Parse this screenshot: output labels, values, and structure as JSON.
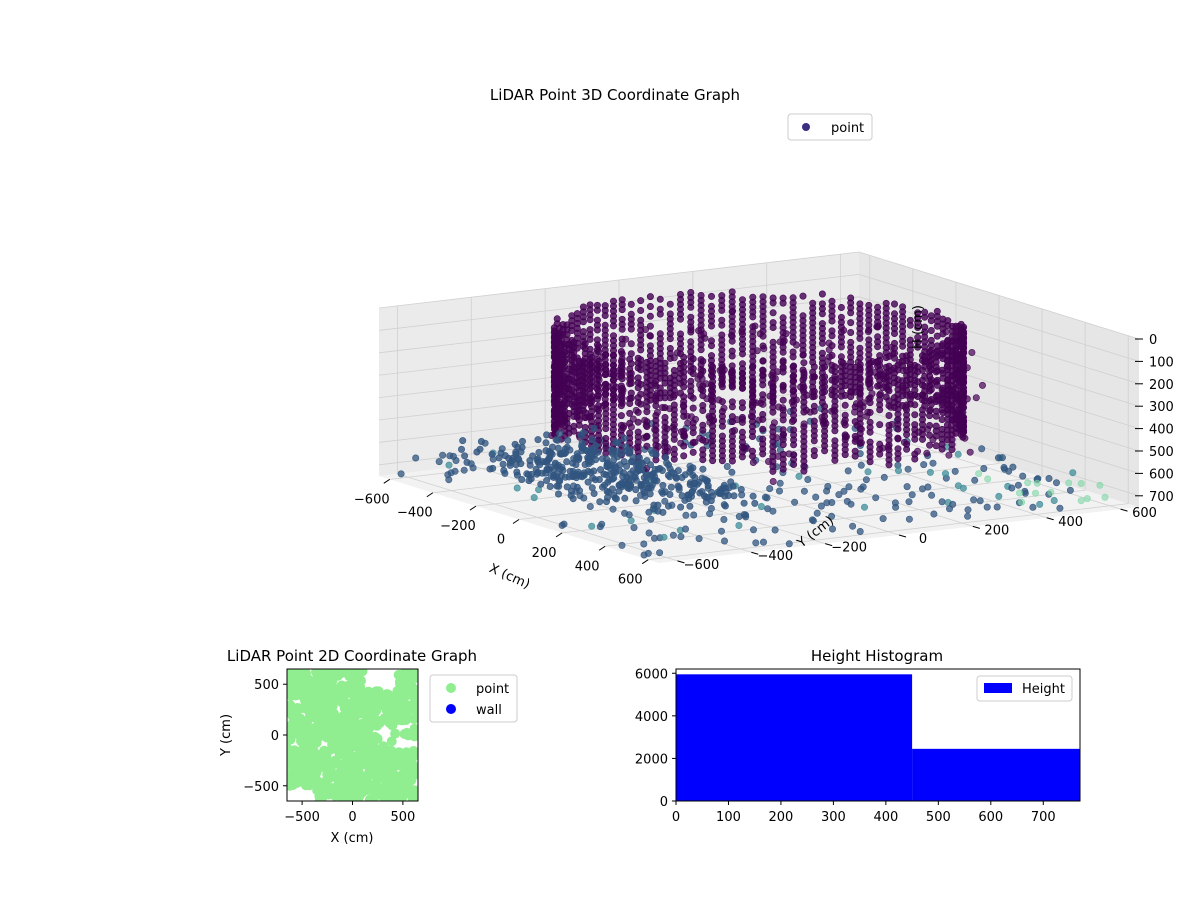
{
  "colors": {
    "dark_point": "#3b2f80",
    "wall_point": "#440154",
    "floor_point": "#31557f",
    "green_point": "#90ee90",
    "wall_legend": "#0000ff",
    "bar": "#0000ff",
    "pane": "#f2f2f2",
    "grid": "#d0d0d0"
  },
  "chart_data": [
    {
      "type": "scatter",
      "title": "LiDAR Point 3D Coordinate Graph",
      "xlabel": "X (cm)",
      "ylabel": "Y (cm)",
      "zlabel": "H (cm)",
      "legend": {
        "placement": "top-right",
        "entries": [
          "point"
        ]
      },
      "x_ticks": [
        -600,
        -400,
        -200,
        0,
        200,
        400,
        600
      ],
      "y_ticks": [
        -600,
        -400,
        -200,
        0,
        200,
        400,
        600
      ],
      "z_ticks": [
        0,
        100,
        200,
        300,
        400,
        500,
        600,
        700
      ],
      "x_tick_labels": [
        "−600",
        "−400",
        "−200",
        "0",
        "200",
        "400",
        "600"
      ],
      "y_tick_labels": [
        "−600",
        "−400",
        "−200",
        "0",
        "200",
        "400",
        "600"
      ],
      "z_tick_labels": [
        "0",
        "100",
        "200",
        "300",
        "400",
        "500",
        "600",
        "700"
      ],
      "xlim": [
        -650,
        650
      ],
      "ylim": [
        -650,
        650
      ],
      "zlim": [
        0,
        750
      ],
      "z_inverted": true,
      "grid": true,
      "series": [
        {
          "name": "point",
          "color": "#3b2f80"
        }
      ]
    },
    {
      "type": "scatter",
      "title": "LiDAR Point 2D Coordinate Graph",
      "xlabel": "X (cm)",
      "ylabel": "Y (cm)",
      "xlim": [
        -650,
        650
      ],
      "ylim": [
        -650,
        650
      ],
      "x_ticks": [
        -500,
        0,
        500
      ],
      "y_ticks": [
        -500,
        0,
        500
      ],
      "x_tick_labels": [
        "−500",
        "0",
        "500"
      ],
      "y_tick_labels": [
        "−500",
        "0",
        "500"
      ],
      "legend": {
        "placement": "outside-right",
        "entries": [
          "point",
          "wall"
        ]
      },
      "series": [
        {
          "name": "point",
          "color": "#90ee90"
        },
        {
          "name": "wall",
          "color": "#0000ff"
        }
      ]
    },
    {
      "type": "bar",
      "title": "Height Histogram",
      "bins": [
        [
          0,
          450
        ],
        [
          450,
          770
        ]
      ],
      "values": [
        5950,
        2450
      ],
      "xlim": [
        0,
        770
      ],
      "ylim": [
        0,
        6200
      ],
      "x_ticks": [
        0,
        100,
        200,
        300,
        400,
        500,
        600,
        700
      ],
      "y_ticks": [
        0,
        2000,
        4000,
        6000
      ],
      "x_tick_labels": [
        "0",
        "100",
        "200",
        "300",
        "400",
        "500",
        "600",
        "700"
      ],
      "y_tick_labels": [
        "0",
        "2000",
        "4000",
        "6000"
      ],
      "legend": {
        "placement": "top-right",
        "entries": [
          "Height"
        ]
      },
      "series": [
        {
          "name": "Height",
          "color": "#0000ff"
        }
      ]
    }
  ]
}
